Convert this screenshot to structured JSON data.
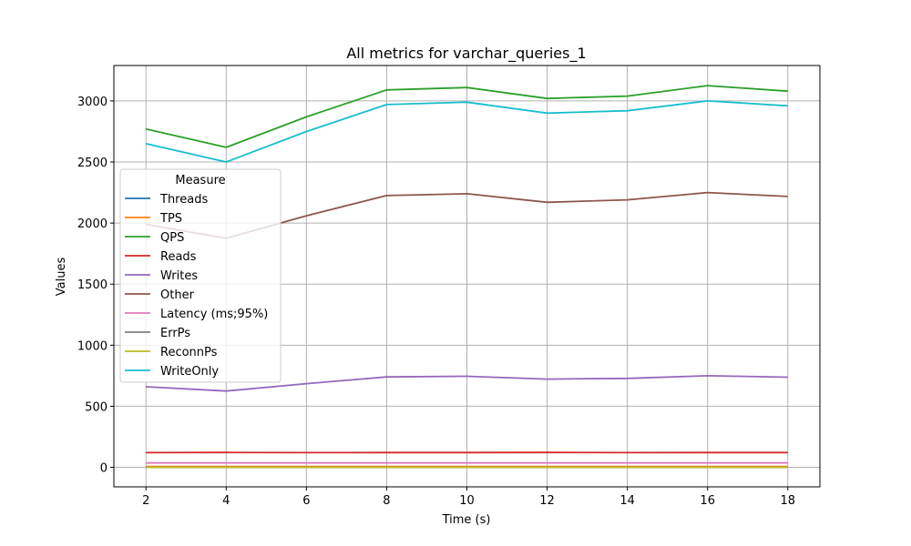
{
  "chart_data": {
    "type": "line",
    "title": "All metrics for varchar_queries_1",
    "xlabel": "Time (s)",
    "ylabel": "Values",
    "x": [
      2,
      4,
      6,
      8,
      10,
      12,
      14,
      16,
      18
    ],
    "xlim": [
      1.2,
      18.8
    ],
    "ylim": [
      -160,
      3290
    ],
    "xticks": [
      2,
      4,
      6,
      8,
      10,
      12,
      14,
      16,
      18
    ],
    "yticks": [
      0,
      500,
      1000,
      1500,
      2000,
      2500,
      3000
    ],
    "grid": true,
    "legend": {
      "title": "Measure",
      "placement": "center-left"
    },
    "series": [
      {
        "name": "Threads",
        "color": "#1f77b4",
        "values": [
          4,
          4,
          4,
          4,
          4,
          4,
          4,
          4,
          4
        ]
      },
      {
        "name": "TPS",
        "color": "#ff7f0e",
        "values": [
          6,
          6,
          6,
          6,
          6,
          6,
          6,
          6,
          6
        ]
      },
      {
        "name": "QPS",
        "color": "#2ca02c",
        "values": [
          2770,
          2620,
          2870,
          3090,
          3110,
          3020,
          3040,
          3125,
          3080
        ]
      },
      {
        "name": "Reads",
        "color": "#d62728",
        "values": [
          120,
          122,
          120,
          121,
          121,
          122,
          120,
          121,
          121
        ]
      },
      {
        "name": "Writes",
        "color": "#9467bd",
        "values": [
          660,
          625,
          685,
          740,
          745,
          722,
          728,
          750,
          738
        ]
      },
      {
        "name": "Other",
        "color": "#8c564b",
        "values": [
          1990,
          1875,
          2060,
          2225,
          2240,
          2170,
          2190,
          2250,
          2218
        ]
      },
      {
        "name": "Latency (ms;95%)",
        "color": "#e377c2",
        "values": [
          36,
          36,
          36,
          36,
          36,
          36,
          36,
          36,
          36
        ]
      },
      {
        "name": "ErrPs",
        "color": "#7f7f7f",
        "values": [
          0,
          0,
          0,
          0,
          0,
          0,
          0,
          0,
          0
        ]
      },
      {
        "name": "ReconnPs",
        "color": "#bcbd22",
        "values": [
          0,
          0,
          0,
          0,
          0,
          0,
          0,
          0,
          0
        ]
      },
      {
        "name": "WriteOnly",
        "color": "#17becf",
        "values": [
          2650,
          2500,
          2750,
          2970,
          2990,
          2900,
          2920,
          3000,
          2960
        ]
      }
    ]
  }
}
